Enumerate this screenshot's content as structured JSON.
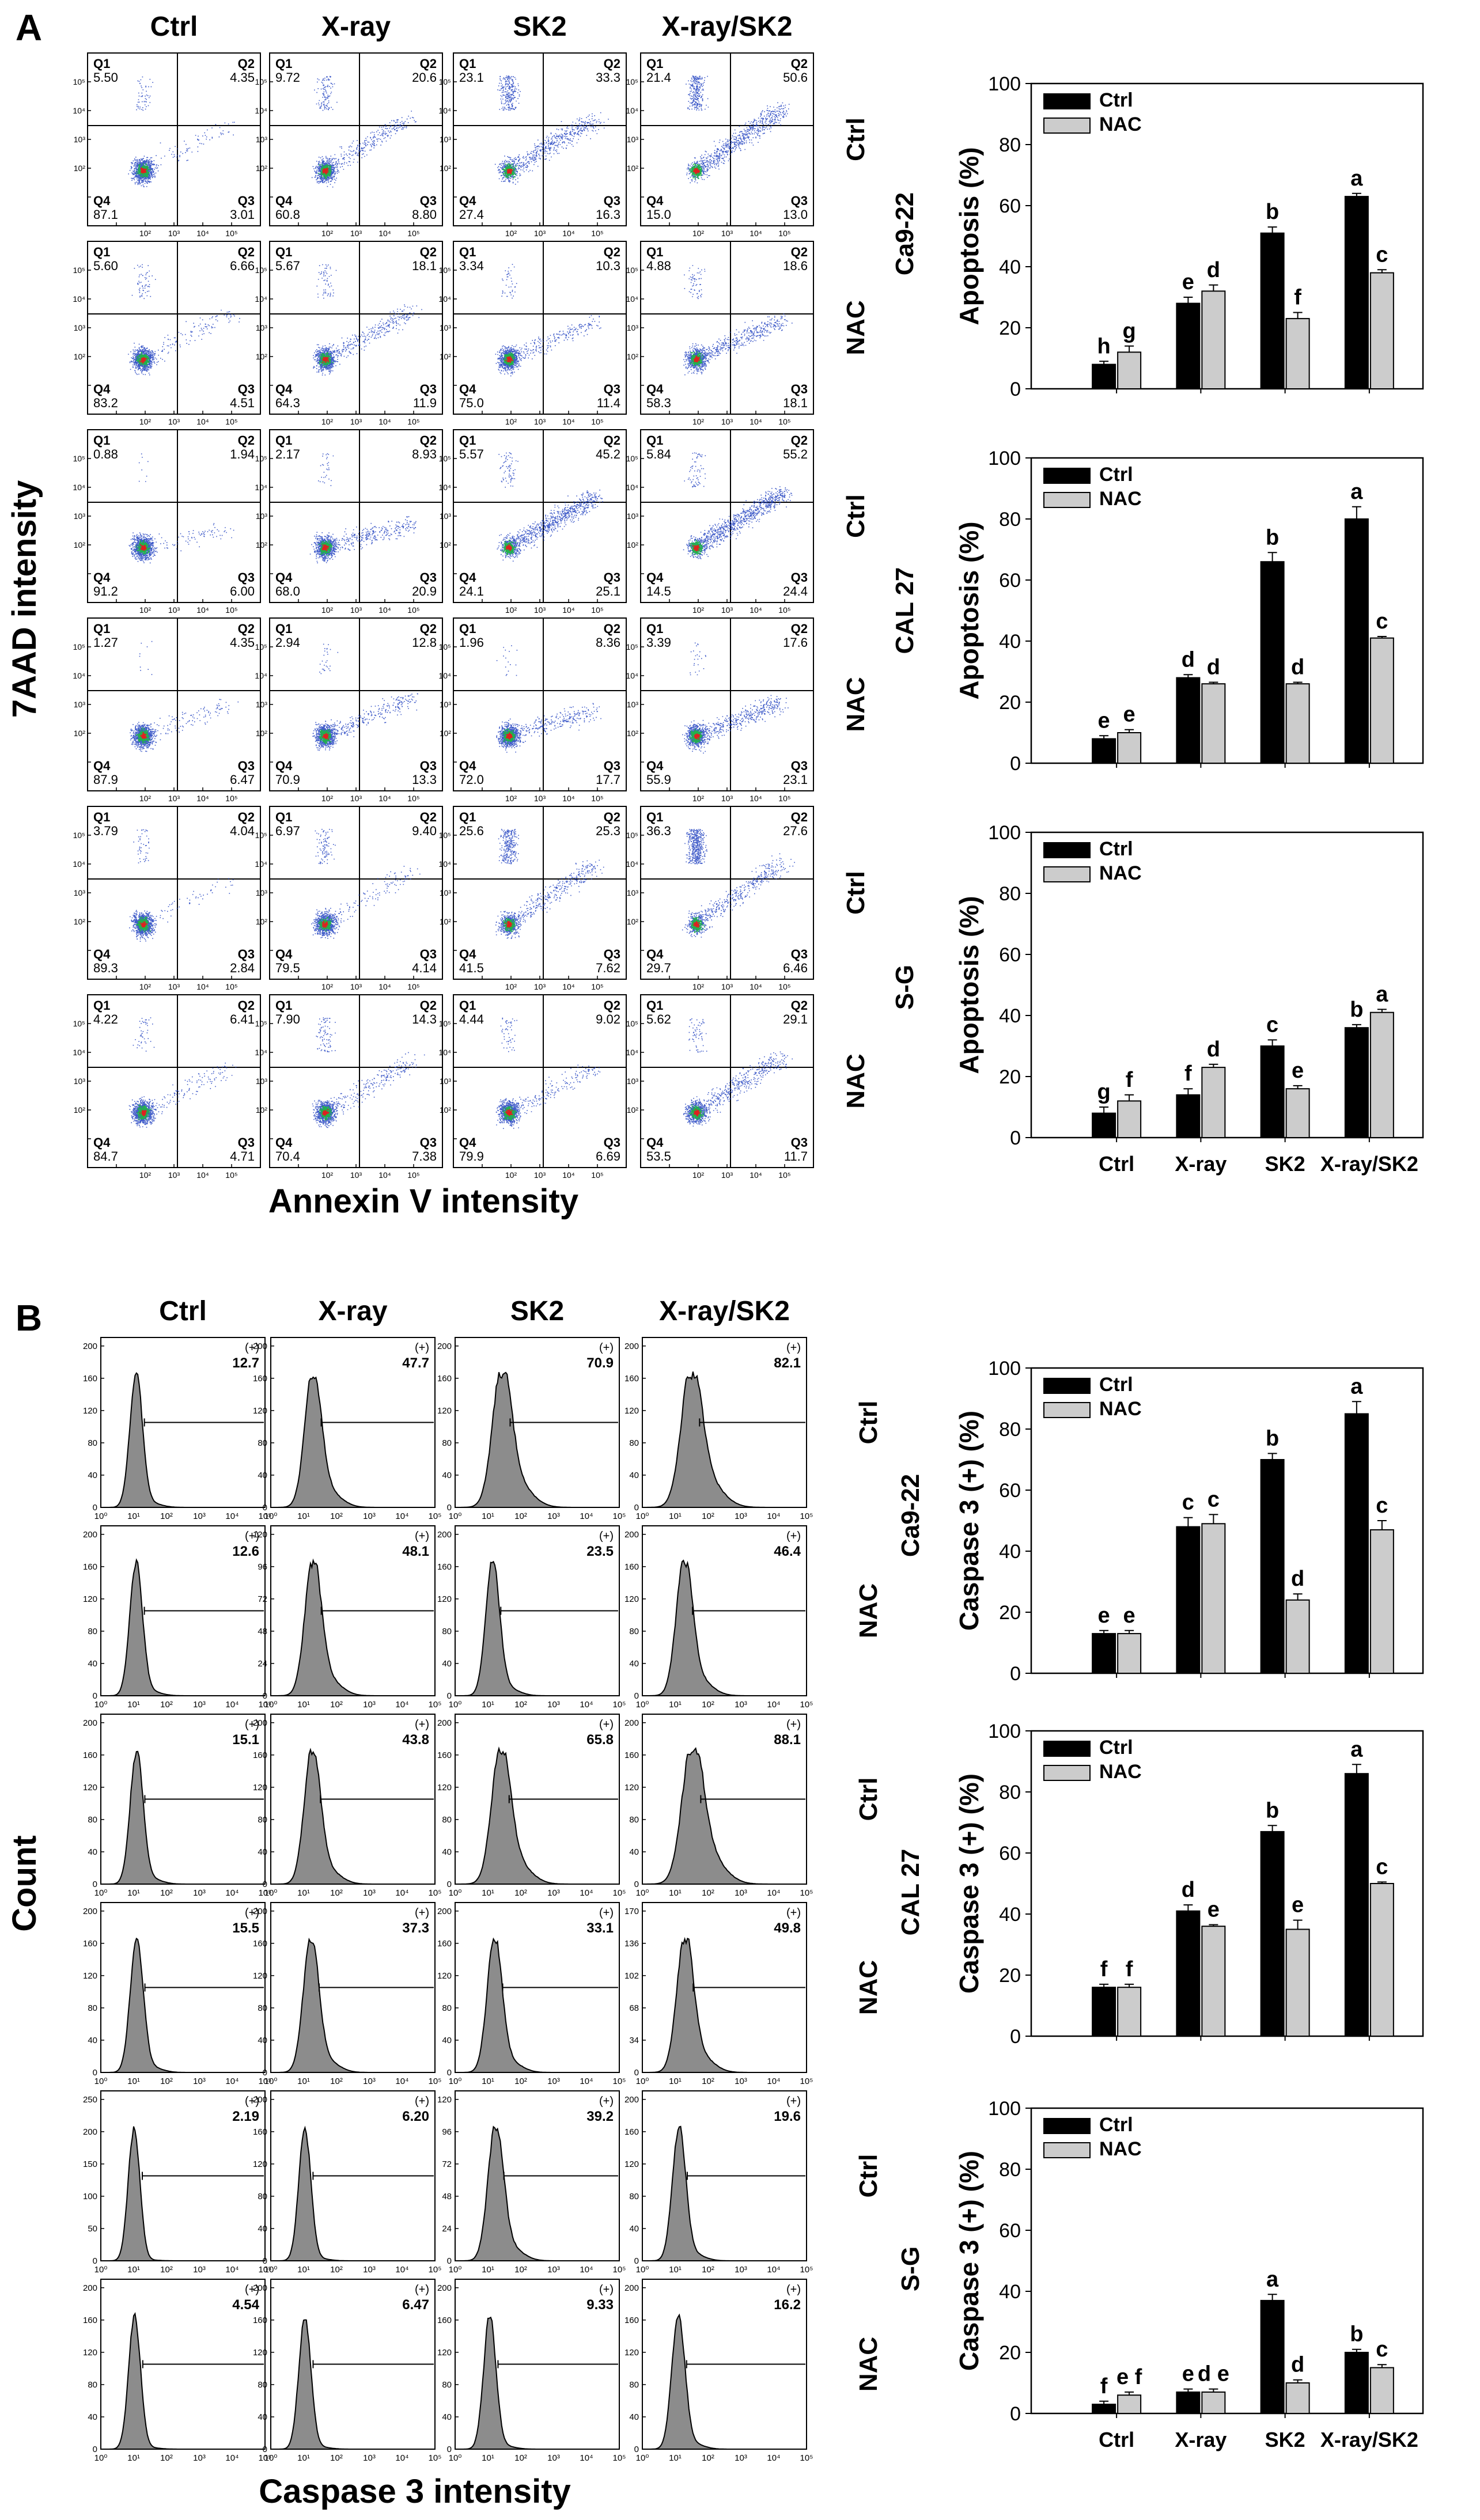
{
  "panels": {
    "A": {
      "letter": "A",
      "column_headers": [
        "Ctrl",
        "X-ray",
        "SK2",
        "X-ray/SK2"
      ],
      "y_axis_label": "7AAD intensity",
      "x_axis_label": "Annexin V intensity",
      "cell_lines": [
        {
          "name": "Ca9-22",
          "rows": [
            {
              "treatment": "Ctrl",
              "plots": [
                {
                  "Q1": "5.50",
                  "Q2": "4.35",
                  "Q3": "3.01",
                  "Q4": "87.1"
                },
                {
                  "Q1": "9.72",
                  "Q2": "20.6",
                  "Q3": "8.80",
                  "Q4": "60.8"
                },
                {
                  "Q1": "23.1",
                  "Q2": "33.3",
                  "Q3": "16.3",
                  "Q4": "27.4"
                },
                {
                  "Q1": "21.4",
                  "Q2": "50.6",
                  "Q3": "13.0",
                  "Q4": "15.0"
                }
              ]
            },
            {
              "treatment": "NAC",
              "plots": [
                {
                  "Q1": "5.60",
                  "Q2": "6.66",
                  "Q3": "4.51",
                  "Q4": "83.2"
                },
                {
                  "Q1": "5.67",
                  "Q2": "18.1",
                  "Q3": "11.9",
                  "Q4": "64.3"
                },
                {
                  "Q1": "3.34",
                  "Q2": "10.3",
                  "Q3": "11.4",
                  "Q4": "75.0"
                },
                {
                  "Q1": "4.88",
                  "Q2": "18.6",
                  "Q3": "18.1",
                  "Q4": "58.3"
                }
              ]
            }
          ]
        },
        {
          "name": "CAL 27",
          "rows": [
            {
              "treatment": "Ctrl",
              "plots": [
                {
                  "Q1": "0.88",
                  "Q2": "1.94",
                  "Q3": "6.00",
                  "Q4": "91.2"
                },
                {
                  "Q1": "2.17",
                  "Q2": "8.93",
                  "Q3": "20.9",
                  "Q4": "68.0"
                },
                {
                  "Q1": "5.57",
                  "Q2": "45.2",
                  "Q3": "25.1",
                  "Q4": "24.1"
                },
                {
                  "Q1": "5.84",
                  "Q2": "55.2",
                  "Q3": "24.4",
                  "Q4": "14.5"
                }
              ]
            },
            {
              "treatment": "NAC",
              "plots": [
                {
                  "Q1": "1.27",
                  "Q2": "4.35",
                  "Q3": "6.47",
                  "Q4": "87.9"
                },
                {
                  "Q1": "2.94",
                  "Q2": "12.8",
                  "Q3": "13.3",
                  "Q4": "70.9"
                },
                {
                  "Q1": "1.96",
                  "Q2": "8.36",
                  "Q3": "17.7",
                  "Q4": "72.0"
                },
                {
                  "Q1": "3.39",
                  "Q2": "17.6",
                  "Q3": "23.1",
                  "Q4": "55.9"
                }
              ]
            }
          ]
        },
        {
          "name": "S-G",
          "rows": [
            {
              "treatment": "Ctrl",
              "plots": [
                {
                  "Q1": "3.79",
                  "Q2": "4.04",
                  "Q3": "2.84",
                  "Q4": "89.3"
                },
                {
                  "Q1": "6.97",
                  "Q2": "9.40",
                  "Q3": "4.14",
                  "Q4": "79.5"
                },
                {
                  "Q1": "25.6",
                  "Q2": "25.3",
                  "Q3": "7.62",
                  "Q4": "41.5"
                },
                {
                  "Q1": "36.3",
                  "Q2": "27.6",
                  "Q3": "6.46",
                  "Q4": "29.7"
                }
              ]
            },
            {
              "treatment": "NAC",
              "plots": [
                {
                  "Q1": "4.22",
                  "Q2": "6.41",
                  "Q3": "4.71",
                  "Q4": "84.7"
                },
                {
                  "Q1": "7.90",
                  "Q2": "14.3",
                  "Q3": "7.38",
                  "Q4": "70.4"
                },
                {
                  "Q1": "4.44",
                  "Q2": "9.02",
                  "Q3": "6.69",
                  "Q4": "79.9"
                },
                {
                  "Q1": "5.62",
                  "Q2": "29.1",
                  "Q3": "11.7",
                  "Q4": "53.5"
                }
              ]
            }
          ]
        }
      ]
    },
    "B": {
      "letter": "B",
      "column_headers": [
        "Ctrl",
        "X-ray",
        "SK2",
        "X-ray/SK2"
      ],
      "y_axis_label": "Count",
      "x_axis_label": "Caspase 3 intensity",
      "gate_label": "(+)",
      "cell_lines": [
        {
          "name": "Ca9-22",
          "rows": [
            {
              "treatment": "Ctrl",
              "values": [
                "12.7",
                "47.7",
                "70.9",
                "82.1"
              ],
              "ymax": [
                200,
                200,
                200,
                200
              ]
            },
            {
              "treatment": "NAC",
              "values": [
                "12.6",
                "48.1",
                "23.5",
                "46.4"
              ],
              "ymax": [
                200,
                120,
                200,
                200
              ]
            }
          ]
        },
        {
          "name": "CAL 27",
          "rows": [
            {
              "treatment": "Ctrl",
              "values": [
                "15.1",
                "43.8",
                "65.8",
                "88.1"
              ],
              "ymax": [
                200,
                200,
                200,
                200
              ]
            },
            {
              "treatment": "NAC",
              "values": [
                "15.5",
                "37.3",
                "33.1",
                "49.8"
              ],
              "ymax": [
                200,
                200,
                200,
                170
              ]
            }
          ]
        },
        {
          "name": "S-G",
          "rows": [
            {
              "treatment": "Ctrl",
              "values": [
                "2.19",
                "6.20",
                "39.2",
                "19.6"
              ],
              "ymax": [
                250,
                200,
                120,
                200
              ]
            },
            {
              "treatment": "NAC",
              "values": [
                "4.54",
                "6.47",
                "9.33",
                "16.2"
              ],
              "ymax": [
                200,
                200,
                200,
                200
              ]
            }
          ]
        }
      ]
    }
  },
  "colors": {
    "ctrl_bar": "#000000",
    "nac_bar": "#cccccc",
    "histogram_fill": "#8c8c8c",
    "dot_blue": "#1f3fbf",
    "dot_green": "#22b14c",
    "dot_red": "#e02020"
  },
  "chart_data": [
    {
      "type": "bar",
      "panel": "A",
      "cell_line": "Ca9-22",
      "ylabel": "Apoptosis (%)",
      "ylim": [
        0,
        100
      ],
      "yticks": [
        0,
        20,
        40,
        60,
        80,
        100
      ],
      "categories": [
        "Ctrl",
        "X-ray",
        "SK2",
        "X-ray/SK2"
      ],
      "show_categories": false,
      "legend": "top-left",
      "series": [
        {
          "name": "Ctrl",
          "values": [
            8,
            28,
            51,
            63
          ],
          "errors": [
            1,
            2,
            2,
            1
          ],
          "letters": [
            "h",
            "e",
            "b",
            "a"
          ]
        },
        {
          "name": "NAC",
          "values": [
            12,
            32,
            23,
            38
          ],
          "errors": [
            2,
            2,
            2,
            1
          ],
          "letters": [
            "g",
            "d",
            "f",
            "c"
          ]
        }
      ]
    },
    {
      "type": "bar",
      "panel": "A",
      "cell_line": "CAL 27",
      "ylabel": "Apoptosis (%)",
      "ylim": [
        0,
        100
      ],
      "yticks": [
        0,
        20,
        40,
        60,
        80,
        100
      ],
      "categories": [
        "Ctrl",
        "X-ray",
        "SK2",
        "X-ray/SK2"
      ],
      "show_categories": false,
      "legend": "top-left",
      "series": [
        {
          "name": "Ctrl",
          "values": [
            8,
            28,
            66,
            80
          ],
          "errors": [
            1,
            1,
            3,
            4
          ],
          "letters": [
            "e",
            "d",
            "b",
            "a"
          ]
        },
        {
          "name": "NAC",
          "values": [
            10,
            26,
            26,
            41
          ],
          "errors": [
            1,
            0.5,
            0.5,
            0.5
          ],
          "letters": [
            "e",
            "d",
            "d",
            "c"
          ]
        }
      ]
    },
    {
      "type": "bar",
      "panel": "A",
      "cell_line": "S-G",
      "ylabel": "Apoptosis (%)",
      "ylim": [
        0,
        100
      ],
      "yticks": [
        0,
        20,
        40,
        60,
        80,
        100
      ],
      "categories": [
        "Ctrl",
        "X-ray",
        "SK2",
        "X-ray/SK2"
      ],
      "show_categories": true,
      "legend": "top-left",
      "series": [
        {
          "name": "Ctrl",
          "values": [
            8,
            14,
            30,
            36
          ],
          "errors": [
            2,
            2,
            2,
            1
          ],
          "letters": [
            "g",
            "f",
            "c",
            "b"
          ]
        },
        {
          "name": "NAC",
          "values": [
            12,
            23,
            16,
            41
          ],
          "errors": [
            2,
            1,
            1,
            1
          ],
          "letters": [
            "f",
            "d",
            "e",
            "a"
          ]
        }
      ]
    },
    {
      "type": "bar",
      "panel": "B",
      "cell_line": "Ca9-22",
      "ylabel": "Caspase 3 (+) (%)",
      "ylim": [
        0,
        100
      ],
      "yticks": [
        0,
        20,
        40,
        60,
        80,
        100
      ],
      "categories": [
        "Ctrl",
        "X-ray",
        "SK2",
        "X-ray/SK2"
      ],
      "show_categories": false,
      "legend": "top-left",
      "series": [
        {
          "name": "Ctrl",
          "values": [
            13,
            48,
            70,
            85
          ],
          "errors": [
            1,
            3,
            2,
            4
          ],
          "letters": [
            "e",
            "c",
            "b",
            "a"
          ]
        },
        {
          "name": "NAC",
          "values": [
            13,
            49,
            24,
            47
          ],
          "errors": [
            1,
            3,
            2,
            3
          ],
          "letters": [
            "e",
            "c",
            "d",
            "c"
          ]
        }
      ]
    },
    {
      "type": "bar",
      "panel": "B",
      "cell_line": "CAL 27",
      "ylabel": "Caspase 3 (+) (%)",
      "ylim": [
        0,
        100
      ],
      "yticks": [
        0,
        20,
        40,
        60,
        80,
        100
      ],
      "categories": [
        "Ctrl",
        "X-ray",
        "SK2",
        "X-ray/SK2"
      ],
      "show_categories": false,
      "legend": "top-left",
      "series": [
        {
          "name": "Ctrl",
          "values": [
            16,
            41,
            67,
            86
          ],
          "errors": [
            1,
            2,
            2,
            3
          ],
          "letters": [
            "f",
            "d",
            "b",
            "a"
          ]
        },
        {
          "name": "NAC",
          "values": [
            16,
            36,
            35,
            50
          ],
          "errors": [
            1,
            0.5,
            3,
            0.5
          ],
          "letters": [
            "f",
            "e",
            "e",
            "c"
          ]
        }
      ]
    },
    {
      "type": "bar",
      "panel": "B",
      "cell_line": "S-G",
      "ylabel": "Caspase 3 (+) (%)",
      "ylim": [
        0,
        100
      ],
      "yticks": [
        0,
        20,
        40,
        60,
        80,
        100
      ],
      "categories": [
        "Ctrl",
        "X-ray",
        "SK2",
        "X-ray/SK2"
      ],
      "show_categories": true,
      "legend": "top-left",
      "series": [
        {
          "name": "Ctrl",
          "values": [
            3,
            7,
            37,
            20
          ],
          "errors": [
            1,
            1,
            2,
            1
          ],
          "letters": [
            "f",
            "e",
            "a",
            "b"
          ]
        },
        {
          "name": "NAC",
          "values": [
            6,
            7,
            10,
            15
          ],
          "errors": [
            1,
            1,
            1,
            1
          ],
          "letters": [
            "e f",
            "d e",
            "d",
            "c"
          ]
        }
      ]
    }
  ]
}
